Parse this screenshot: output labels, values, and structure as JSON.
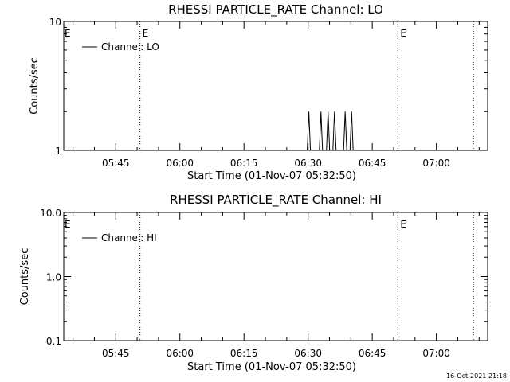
{
  "chart_data": [
    {
      "type": "line",
      "title": "RHESSI PARTICLE_RATE Channel: LO",
      "xlabel": "Start Time (01-Nov-07 05:32:50)",
      "ylabel": "Counts/sec",
      "yscale": "log",
      "ylim": [
        1,
        10
      ],
      "yticks": [
        {
          "value": 1,
          "label": "1"
        },
        {
          "value": 10,
          "label": "10"
        }
      ],
      "xlim": [
        "05:32:50",
        "07:12:00"
      ],
      "xticks": [
        "05:45",
        "06:00",
        "06:15",
        "06:30",
        "06:45",
        "07:00"
      ],
      "legend": {
        "label": "Channel: LO",
        "placement": "top-left"
      },
      "event_lines": [
        {
          "time": "05:50:40",
          "label": "E"
        },
        {
          "time": "06:51:00",
          "label": "E"
        },
        {
          "time": "07:08:40",
          "label": ""
        }
      ],
      "edge_label": "E",
      "spikes": [
        {
          "time": "06:30:10",
          "value": 2
        },
        {
          "time": "06:33:00",
          "value": 2
        },
        {
          "time": "06:34:40",
          "value": 2
        },
        {
          "time": "06:36:10",
          "value": 2
        },
        {
          "time": "06:38:40",
          "value": 2
        },
        {
          "time": "06:40:10",
          "value": 2
        }
      ]
    },
    {
      "type": "line",
      "title": "RHESSI PARTICLE_RATE Channel: HI",
      "xlabel": "Start Time (01-Nov-07 05:32:50)",
      "ylabel": "Counts/sec",
      "yscale": "log",
      "ylim": [
        0.1,
        10
      ],
      "yticks": [
        {
          "value": 0.1,
          "label": "0.1"
        },
        {
          "value": 1,
          "label": "1.0"
        },
        {
          "value": 10,
          "label": "10.0"
        }
      ],
      "xlim": [
        "05:32:50",
        "07:12:00"
      ],
      "xticks": [
        "05:45",
        "06:00",
        "06:15",
        "06:30",
        "06:45",
        "07:00"
      ],
      "legend": {
        "label": "Channel: HI",
        "placement": "top-left"
      },
      "event_lines": [
        {
          "time": "05:50:40",
          "label": ""
        },
        {
          "time": "06:51:00",
          "label": "E"
        },
        {
          "time": "07:08:40",
          "label": ""
        }
      ],
      "edge_label": "E",
      "spikes": []
    }
  ],
  "footer": {
    "timestamp": "16-Oct-2021 21:18"
  }
}
